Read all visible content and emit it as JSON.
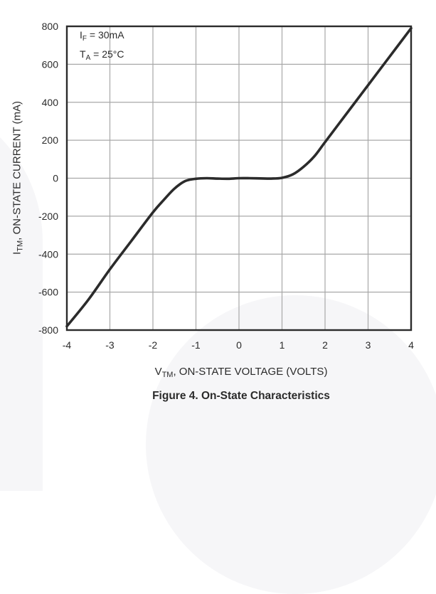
{
  "figure": {
    "title": "Figure 4. On-State Characteristics",
    "xlabel_main": "V",
    "xlabel_sub": "TM",
    "xlabel_rest": ", ON-STATE VOLTAGE (VOLTS)",
    "ylabel_main": "I",
    "ylabel_sub": "TM",
    "ylabel_rest": ", ON-STATE CURRENT (mA)",
    "annotations": [
      {
        "main": "I",
        "sub": "F",
        "rest": " = 30mA"
      },
      {
        "main": "T",
        "sub": "A",
        "rest": " = 25°C"
      }
    ],
    "colors": {
      "curve": "#2b2b2b",
      "grid": "#a8a8a8",
      "frame": "#2b2b2b"
    }
  },
  "chart_data": {
    "type": "line",
    "title": "Figure 4. On-State Characteristics",
    "xlabel": "VTM, ON-STATE VOLTAGE (VOLTS)",
    "ylabel": "ITM, ON-STATE CURRENT (mA)",
    "xlim": [
      -4,
      4
    ],
    "ylim": [
      -800,
      800
    ],
    "x_ticks": [
      -4,
      -3,
      -2,
      -1,
      0,
      1,
      2,
      3,
      4
    ],
    "y_ticks": [
      800,
      600,
      400,
      200,
      0,
      -200,
      -400,
      -600,
      -800
    ],
    "grid": true,
    "annotations": [
      "IF = 30mA",
      "TA = 25°C"
    ],
    "series": [
      {
        "name": "On-State Characteristic",
        "x": [
          -4.0,
          -3.5,
          -3.0,
          -2.5,
          -2.0,
          -1.75,
          -1.5,
          -1.25,
          -1.0,
          -0.75,
          -0.5,
          -0.25,
          0.0,
          0.25,
          0.5,
          0.75,
          1.0,
          1.25,
          1.5,
          1.75,
          2.0,
          2.5,
          3.0,
          3.5,
          4.0
        ],
        "y": [
          -780,
          -640,
          -480,
          -330,
          -180,
          -115,
          -55,
          -15,
          -3,
          0,
          -2,
          -3,
          0,
          0,
          -1,
          -2,
          2,
          20,
          60,
          115,
          190,
          340,
          490,
          640,
          790
        ]
      }
    ]
  }
}
